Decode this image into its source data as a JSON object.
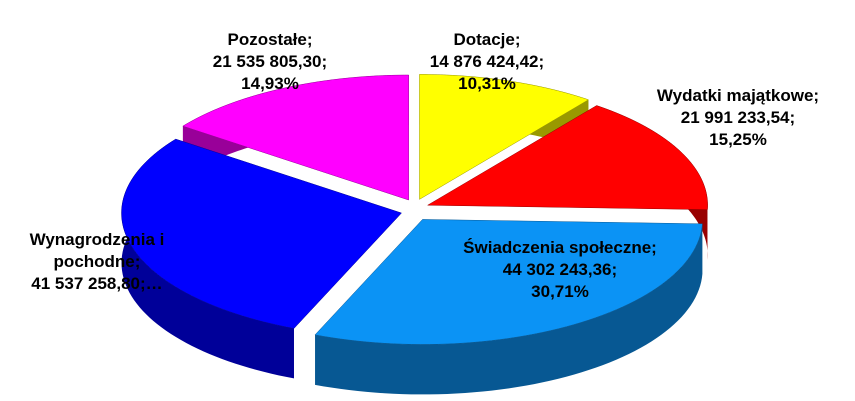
{
  "chart_data": {
    "type": "pie",
    "categories": [
      "Dotacje;",
      "Wydatki majątkowe;",
      "Świadczenia społeczne;",
      "Wynagrodzenia i pochodne;",
      "Pozostałe;"
    ],
    "values": [
      14876424.42,
      21991233.54,
      44302243.36,
      41537258.8,
      21535805.3
    ],
    "value_labels": [
      "14 876 424,42;",
      "21 991 233,54;",
      "44 302 243,36;",
      "41 537 258,80;…",
      "21 535 805,30;"
    ],
    "percents": [
      10.31,
      15.25,
      30.71,
      28.8,
      14.93
    ],
    "percent_labels": [
      "10,31%",
      "15,25%",
      "30,71%",
      null,
      "14,93%"
    ],
    "colors": [
      "#ffff00",
      "#ff0000",
      "#0b93f5",
      "#0000ff",
      "#ff00ff"
    ]
  }
}
